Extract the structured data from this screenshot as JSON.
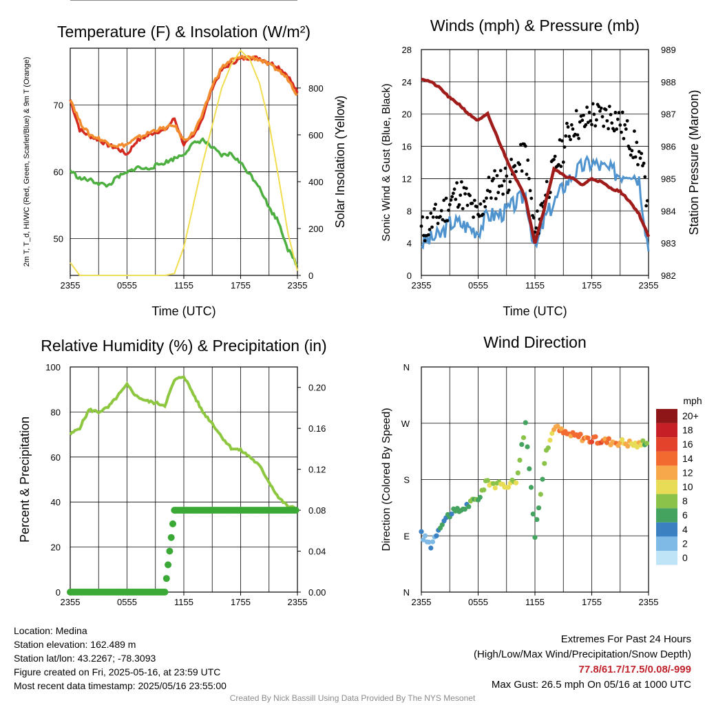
{
  "x_ticks": [
    "2355",
    "0555",
    "1155",
    "1755",
    "2355"
  ],
  "chart_data": [
    {
      "type": "line",
      "title": "Temperature (F) & Insolation (W/m²)",
      "xlabel": "Time (UTC)",
      "ylabel": "2m T, T_d, HI/WC (Red, Green, Scarlet/Blue) & 9m T (Orange)",
      "ylabel_right": "Solar Insolation (Yellow)",
      "ylim": [
        44.5,
        78.5
      ],
      "y_ticks": [
        50,
        60,
        70
      ],
      "ylim_right": [
        0,
        970
      ],
      "y_ticks_right": [
        0,
        200,
        400,
        600,
        800
      ],
      "x": [
        "2355",
        "0055",
        "0155",
        "0255",
        "0355",
        "0455",
        "0555",
        "0655",
        "0755",
        "0855",
        "0955",
        "1055",
        "1155",
        "1255",
        "1355",
        "1455",
        "1555",
        "1655",
        "1755",
        "1855",
        "1955",
        "2055",
        "2155",
        "2255",
        "2355"
      ],
      "series": [
        {
          "color": "#d42a20",
          "axis": "left",
          "values": [
            70.8,
            66.3,
            65.4,
            64.8,
            64.0,
            63.5,
            62.6,
            64.6,
            65.3,
            66.0,
            66.2,
            68.0,
            64.1,
            65.2,
            68.2,
            72.6,
            75.2,
            76.3,
            76.9,
            77.1,
            77.0,
            76.4,
            75.7,
            74.4,
            71.8
          ]
        },
        {
          "color": "#f28c2e",
          "axis": "left",
          "values": [
            71.0,
            67.5,
            65.6,
            65.0,
            64.3,
            63.9,
            64.1,
            65.0,
            65.6,
            66.3,
            66.5,
            67.0,
            64.7,
            65.8,
            68.6,
            72.9,
            75.6,
            76.7,
            77.1,
            77.2,
            76.8,
            76.0,
            75.2,
            73.9,
            71.5
          ]
        },
        {
          "color": "#4caf3f",
          "axis": "left",
          "values": [
            60.2,
            59.0,
            58.8,
            58.3,
            57.9,
            59.2,
            59.8,
            60.7,
            60.4,
            60.9,
            61.4,
            62.0,
            62.7,
            64.2,
            64.8,
            63.6,
            62.4,
            62.7,
            61.3,
            59.6,
            57.8,
            54.6,
            52.6,
            48.4,
            46.0
          ]
        },
        {
          "color": "#f1dd4f",
          "axis": "right",
          "values": [
            55,
            0,
            0,
            0,
            0,
            0,
            0,
            0,
            0,
            0,
            0,
            8,
            120,
            300,
            480,
            640,
            800,
            900,
            960,
            920,
            820,
            650,
            420,
            180,
            20
          ]
        }
      ]
    },
    {
      "type": "line",
      "title": "Winds (mph) & Pressure (mb)",
      "xlabel": "Time (UTC)",
      "ylabel": "Sonic Wind & Gust (Blue, Black)",
      "ylabel_right": "Station Pressure (Maroon)",
      "ylim": [
        0,
        28
      ],
      "y_ticks": [
        0,
        4,
        8,
        12,
        16,
        20,
        24,
        28
      ],
      "ylim_right": [
        982,
        989
      ],
      "y_ticks_right": [
        982,
        983,
        984,
        985,
        986,
        987,
        988,
        989
      ],
      "x": [
        "2355",
        "0055",
        "0155",
        "0255",
        "0355",
        "0455",
        "0555",
        "0655",
        "0755",
        "0855",
        "0955",
        "1055",
        "1155",
        "1255",
        "1355",
        "1455",
        "1555",
        "1655",
        "1755",
        "1855",
        "1955",
        "2055",
        "2155",
        "2255",
        "2355"
      ],
      "series": [
        {
          "color": "#4f93cf",
          "axis": "left",
          "values": [
            4,
            4.5,
            5,
            6.5,
            6.5,
            6,
            5.5,
            7.5,
            7.5,
            8,
            9,
            10,
            3,
            7,
            9,
            11,
            12.5,
            13.5,
            14,
            13.5,
            13,
            12.5,
            13,
            12,
            3
          ]
        },
        {
          "color": "#000000",
          "axis": "left",
          "values": [
            5.5,
            6.5,
            7.5,
            9,
            10.5,
            9,
            7,
            10.5,
            11.5,
            12,
            13,
            15.5,
            5,
            10,
            13,
            16,
            19,
            18.5,
            20,
            19.5,
            20,
            19,
            17,
            15,
            9
          ]
        },
        {
          "color": "#a01c1a",
          "axis": "right",
          "values": [
            988.1,
            988.0,
            987.8,
            987.5,
            987.3,
            987.0,
            986.8,
            987.0,
            986.3,
            985.6,
            985.0,
            984.4,
            983.0,
            984.1,
            985.3,
            985.1,
            985.0,
            984.8,
            985.0,
            984.9,
            984.7,
            984.6,
            984.3,
            983.9,
            983.2
          ]
        }
      ]
    },
    {
      "type": "line",
      "title": "Relative Humidity (%) & Precipitation (in)",
      "ylabel": "Percent & Precipitation",
      "ylim": [
        0,
        100
      ],
      "y_ticks": [
        0,
        20,
        40,
        60,
        80,
        100
      ],
      "ylim_right": [
        0,
        0.22
      ],
      "y_ticks_right": [
        "0.00",
        "0.04",
        "0.08",
        "0.12",
        "0.16",
        "0.20"
      ],
      "x": [
        "2355",
        "0055",
        "0155",
        "0255",
        "0355",
        "0455",
        "0555",
        "0655",
        "0755",
        "0855",
        "0955",
        "1055",
        "1155",
        "1255",
        "1355",
        "1455",
        "1555",
        "1655",
        "1755",
        "1855",
        "1955",
        "2055",
        "2155",
        "2255",
        "2355"
      ],
      "series": [
        {
          "color": "#8dc63f",
          "axis": "left",
          "values": [
            70,
            73,
            81,
            80,
            82,
            87,
            92,
            87,
            85,
            84,
            83,
            94,
            96,
            88,
            80,
            75,
            69,
            64,
            63,
            60,
            56,
            49,
            42,
            38,
            37
          ]
        },
        {
          "color": "#3aa935",
          "axis": "right",
          "values": [
            0,
            0,
            0,
            0,
            0,
            0,
            0,
            0,
            0,
            0,
            0,
            0.08,
            0.08,
            0.08,
            0.08,
            0.08,
            0.08,
            0.08,
            0.08,
            0.08,
            0.08,
            0.08,
            0.08,
            0.08,
            0.08
          ]
        }
      ]
    },
    {
      "type": "scatter",
      "title": "Wind Direction",
      "ylabel": "Direction (Colored By Speed)",
      "y_ticks": [
        "N",
        "E",
        "S",
        "W",
        "N"
      ],
      "x": [
        "2355",
        "0055",
        "0155",
        "0255",
        "0355",
        "0455",
        "0555",
        "0655",
        "0755",
        "0855",
        "0955",
        "1055",
        "1155",
        "1255",
        "1355",
        "1455",
        "1555",
        "1655",
        "1755",
        "1855",
        "1955",
        "2055",
        "2155",
        "2255",
        "2355"
      ],
      "direction_deg": [
        92,
        75,
        108,
        125,
        130,
        140,
        150,
        178,
        170,
        172,
        178,
        270,
        90,
        210,
        265,
        255,
        250,
        248,
        243,
        242,
        241,
        240,
        238,
        235,
        245
      ],
      "speed_mph": [
        2,
        3,
        4,
        6,
        6,
        6,
        7,
        8,
        9,
        9,
        10,
        7,
        4,
        8,
        11,
        13,
        14,
        13,
        15,
        14,
        13,
        12,
        11,
        10,
        6
      ],
      "legend_title": "mph",
      "legend_labels": [
        "20+",
        "18",
        "16",
        "14",
        "12",
        "10",
        "8",
        "6",
        "4",
        "2",
        "0"
      ],
      "legend_colors": [
        "#8e1518",
        "#c62026",
        "#e2432a",
        "#f26a30",
        "#f7a84a",
        "#e8dc56",
        "#8bc34a",
        "#44a35f",
        "#3b80c1",
        "#7fb9e6",
        "#bfe3f7"
      ]
    }
  ],
  "info": {
    "location": "Location: Medina",
    "elevation": "Station elevation: 162.489 m",
    "latlon": "Station lat/lon: 43.2267; -78.3093",
    "created": "Figure created on Fri, 2025-05-16, at 23:59 UTC",
    "recent": "Most recent data timestamp: 2025/05/16 23:55:00"
  },
  "extremes": {
    "title": "Extremes For Past 24 Hours",
    "subtitle": "(High/Low/Max Wind/Precipitation/Snow Depth)",
    "values": "77.8/61.7/17.5/0.08/-999",
    "gust": "Max Gust: 26.5 mph On 05/16 at 1000 UTC"
  },
  "credit": "Created By Nick Bassill Using Data Provided By The NYS Mesonet"
}
